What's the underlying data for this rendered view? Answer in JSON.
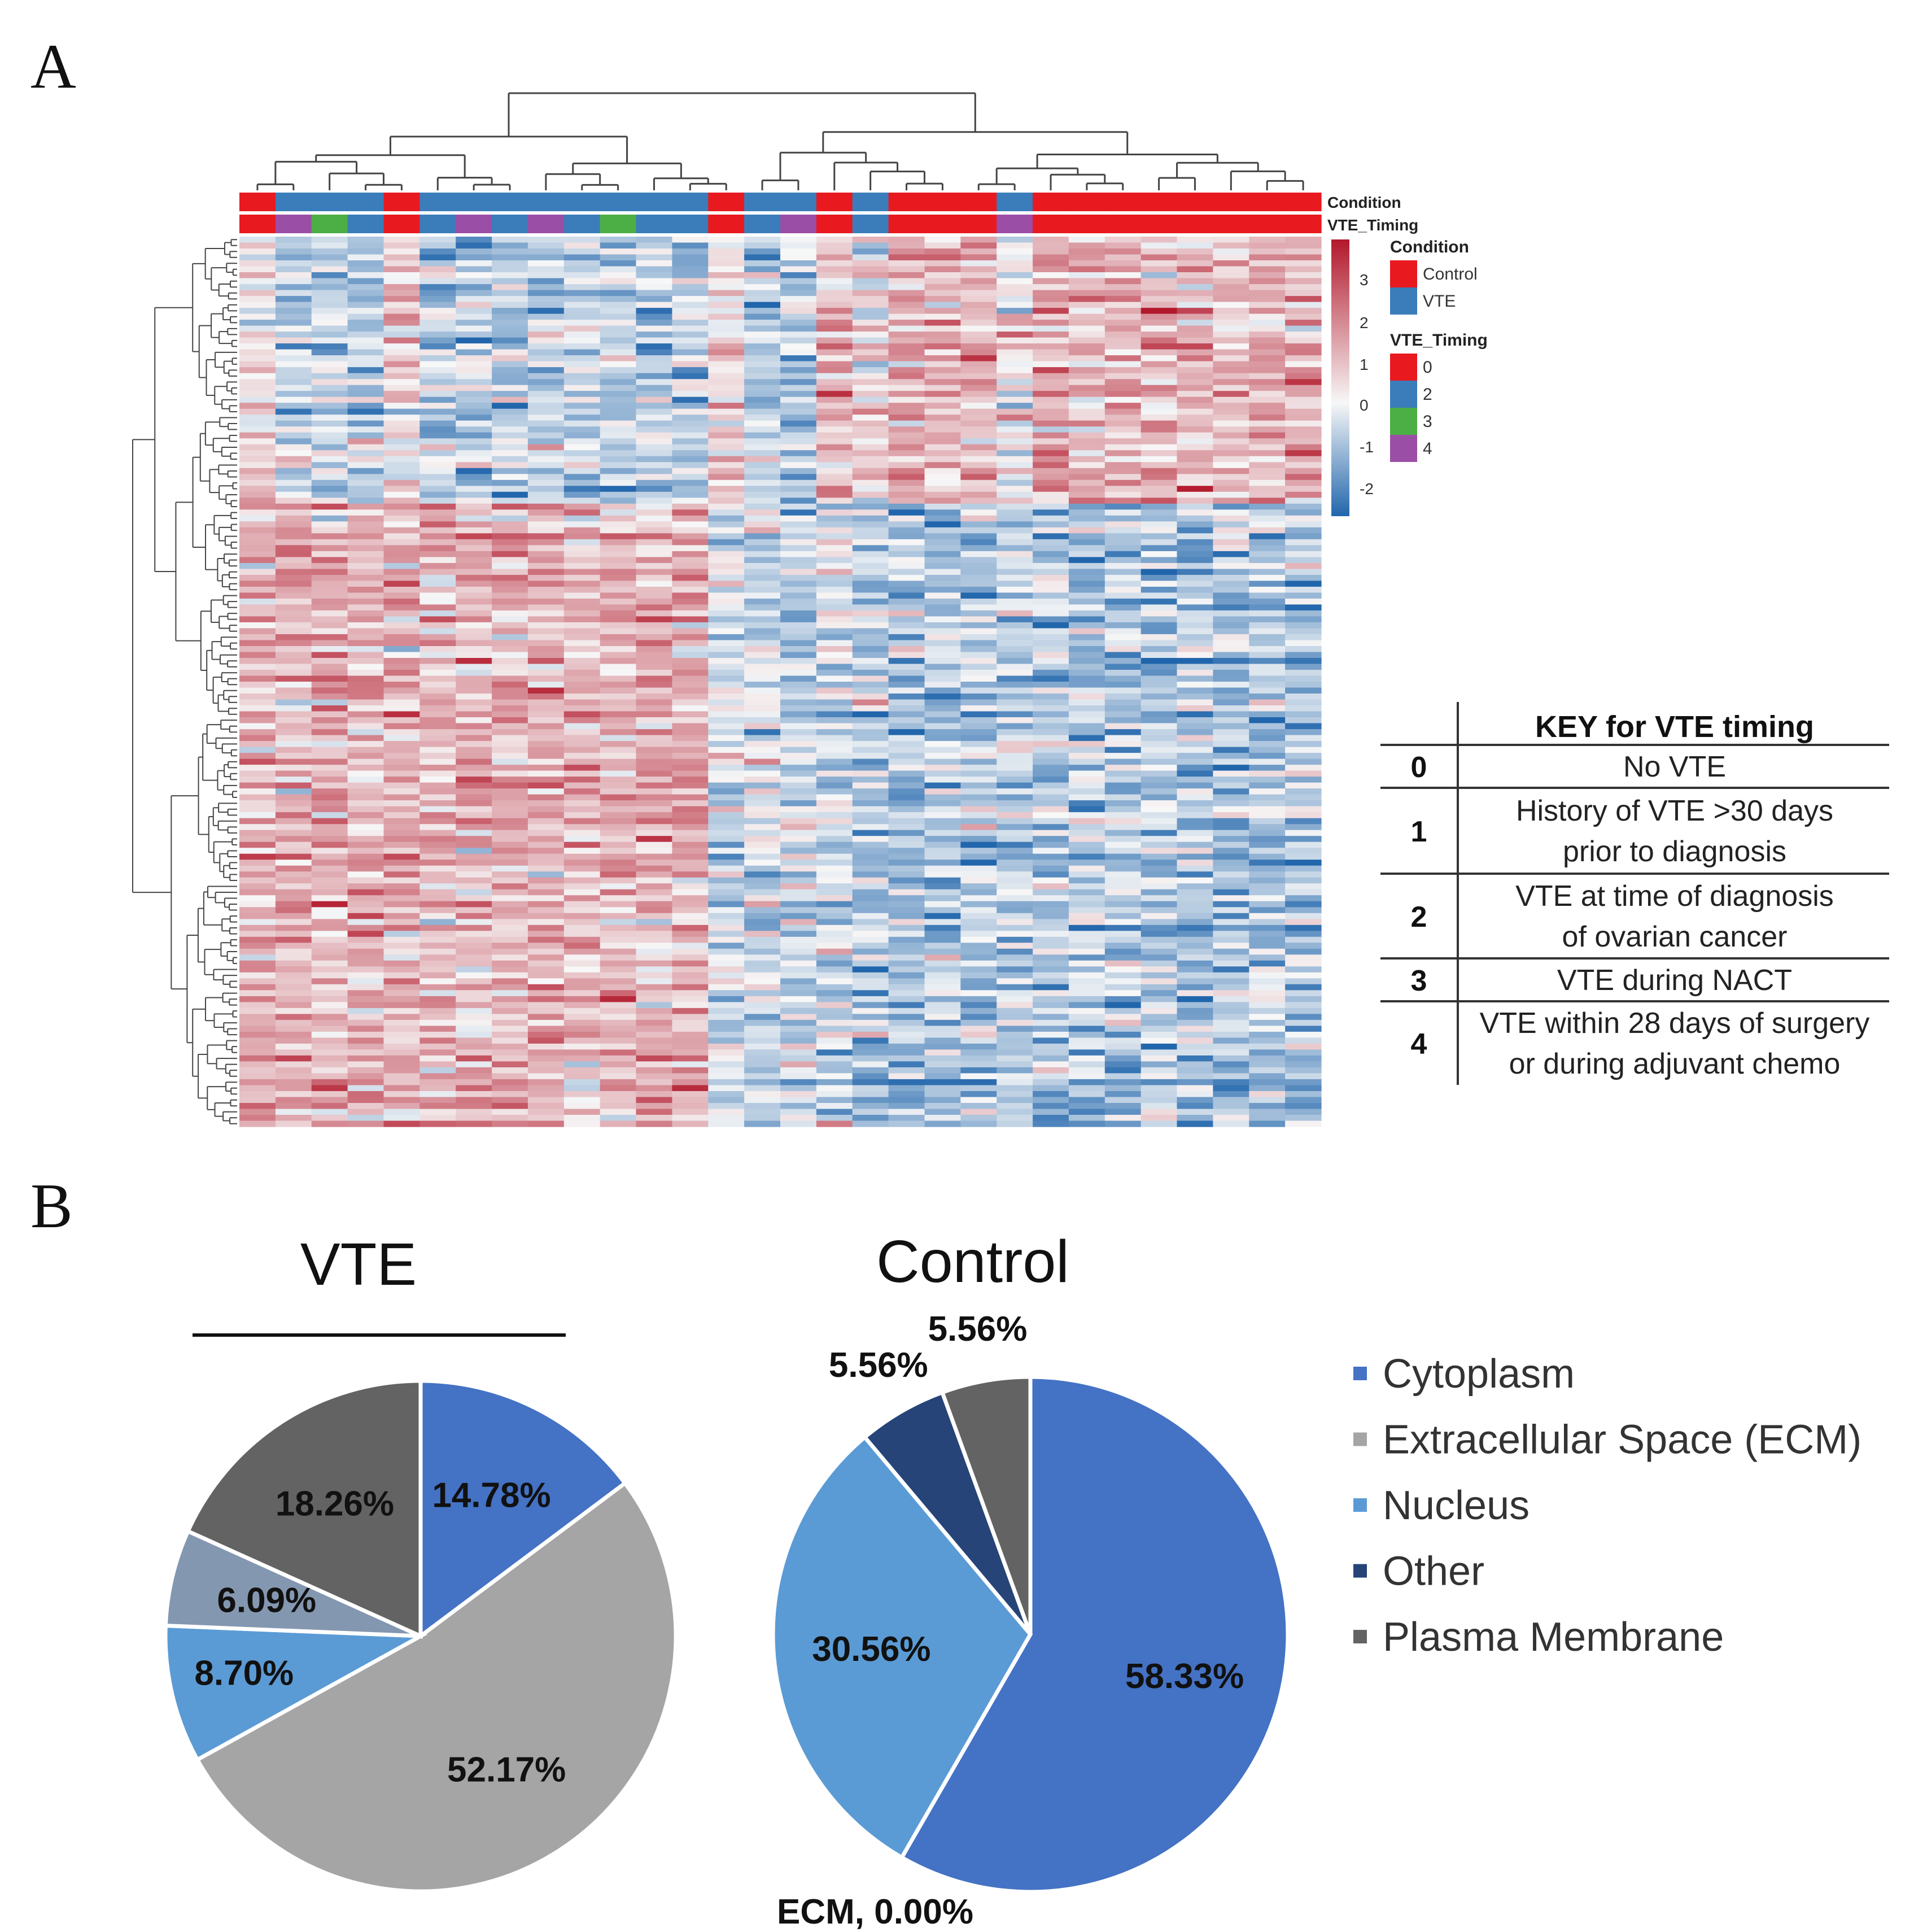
{
  "panel_a": {
    "letter": "A",
    "annotation_labels": {
      "condition": "Condition",
      "timing": "VTE_Timing"
    },
    "columns": {
      "condition": [
        "Control",
        "VTE",
        "VTE",
        "VTE",
        "Control",
        "VTE",
        "VTE",
        "VTE",
        "VTE",
        "VTE",
        "VTE",
        "VTE",
        "VTE",
        "Control",
        "VTE",
        "VTE",
        "Control",
        "VTE",
        "Control",
        "Control",
        "Control",
        "VTE",
        "Control",
        "Control",
        "Control",
        "Control",
        "Control",
        "Control",
        "Control",
        "Control"
      ],
      "timing": [
        0,
        4,
        3,
        2,
        0,
        2,
        4,
        2,
        4,
        2,
        3,
        2,
        2,
        0,
        2,
        4,
        0,
        2,
        0,
        0,
        0,
        4,
        0,
        0,
        0,
        0,
        0,
        0,
        0,
        0
      ]
    },
    "color_scale": {
      "ticks": [
        "3",
        "2",
        "1",
        "0",
        "-1",
        "-2"
      ],
      "tick_values": [
        3,
        2,
        1,
        0,
        -1,
        -2
      ],
      "range": [
        -2.5,
        3.6
      ],
      "low": "#2166AC",
      "mid": "#F7F7F7",
      "high": "#B2182B"
    },
    "legend": {
      "condition_title": "Condition",
      "condition_items": [
        {
          "label": "Control",
          "color": "#E8191F"
        },
        {
          "label": "VTE",
          "color": "#3A7DBA"
        }
      ],
      "timing_title": "VTE_Timing",
      "timing_items": [
        {
          "label": "0",
          "color": "#E8191F"
        },
        {
          "label": "2",
          "color": "#3A7DBA"
        },
        {
          "label": "3",
          "color": "#4CAF45"
        },
        {
          "label": "4",
          "color": "#9B4EA6"
        }
      ]
    },
    "key_table": {
      "title": "KEY for VTE timing",
      "rows": [
        {
          "code": "0",
          "lines": [
            "No VTE"
          ]
        },
        {
          "code": "1",
          "lines": [
            "History of VTE >30 days",
            "prior to diagnosis"
          ]
        },
        {
          "code": "2",
          "lines": [
            "VTE at time of diagnosis",
            "of ovarian cancer"
          ]
        },
        {
          "code": "3",
          "lines": [
            "VTE during NACT"
          ]
        },
        {
          "code": "4",
          "lines": [
            "VTE within 28 days of surgery",
            "or during adjuvant chemo"
          ]
        }
      ]
    }
  },
  "panel_b": {
    "letter": "B"
  },
  "chart_data": [
    {
      "type": "pie",
      "title": "VTE",
      "categories": [
        "Cytoplasm",
        "Extracellular Space (ECM)",
        "Nucleus",
        "Other",
        "Plasma Membrane"
      ],
      "values": [
        14.78,
        52.17,
        8.7,
        6.09,
        18.26
      ],
      "labels": [
        "14.78%",
        "52.17%",
        "8.70%",
        "6.09%",
        "18.26%"
      ],
      "colors": [
        "#4472C4",
        "#A5A5A5",
        "#5B9BD5",
        "#8497B0",
        "#636363"
      ]
    },
    {
      "type": "pie",
      "title": "Control",
      "categories": [
        "Cytoplasm",
        "Extracellular Space (ECM)",
        "Nucleus",
        "Other",
        "Plasma Membrane"
      ],
      "values": [
        58.33,
        0.0,
        30.56,
        5.56,
        5.56
      ],
      "labels": [
        "58.33%",
        "ECM, 0.00%",
        "30.56%",
        "5.56%",
        "5.56%"
      ],
      "colors": [
        "#4472C4",
        "#A5A5A5",
        "#5B9BD5",
        "#264478",
        "#636363"
      ]
    }
  ],
  "pie_legend": [
    {
      "label": "Cytoplasm",
      "color": "#4472C4"
    },
    {
      "label": "Extracellular Space (ECM)",
      "color": "#A5A5A5"
    },
    {
      "label": "Nucleus",
      "color": "#5B9BD5"
    },
    {
      "label": "Other",
      "color": "#264478"
    },
    {
      "label": "Plasma Membrane",
      "color": "#636363"
    }
  ]
}
